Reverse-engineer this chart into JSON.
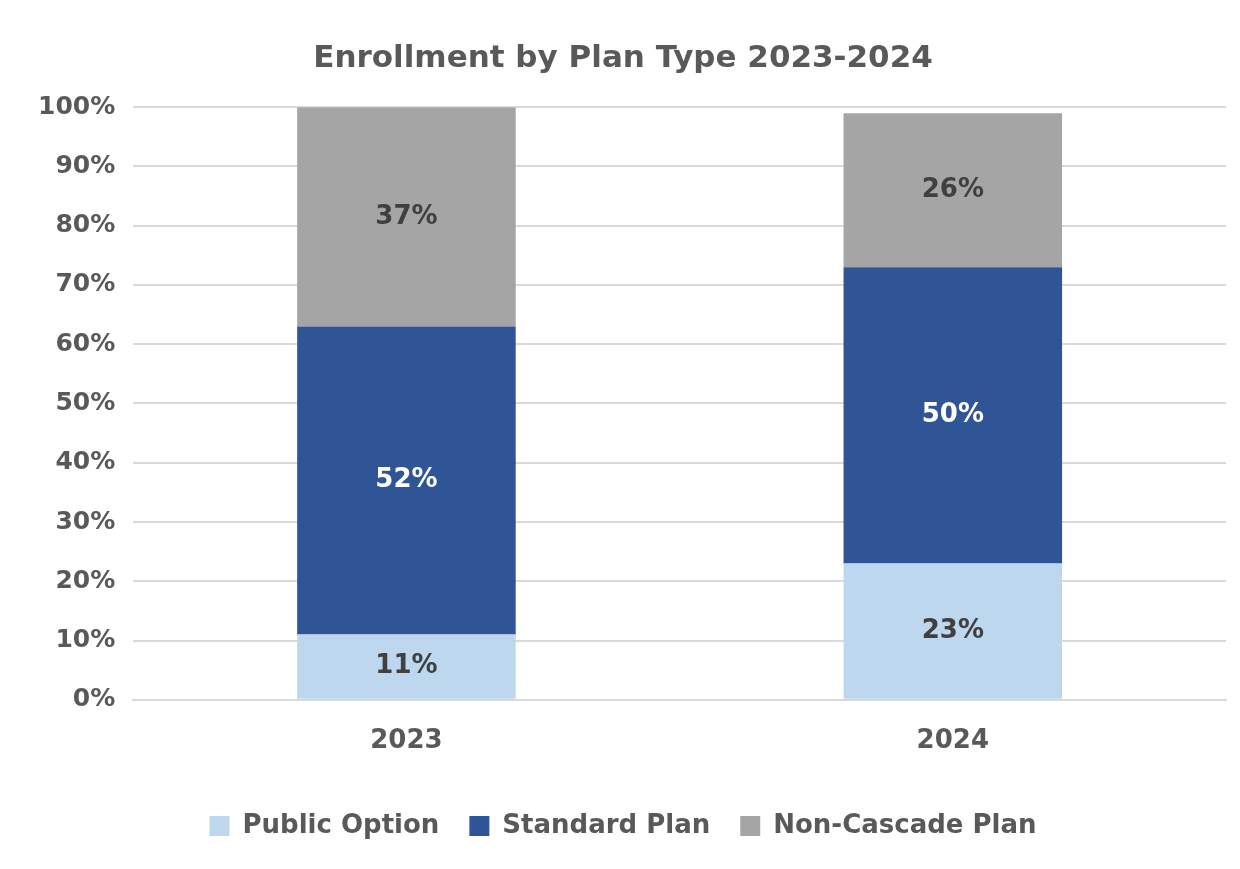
{
  "chart_data": {
    "type": "bar",
    "title": "Enrollment by Plan Type 2023-2024",
    "categories": [
      "2023",
      "2024"
    ],
    "stacked": true,
    "legend": "bottom",
    "grid": "y",
    "ylim": [
      0,
      100
    ],
    "yticks": [
      {
        "value": 0,
        "label": "0%"
      },
      {
        "value": 10,
        "label": "10%"
      },
      {
        "value": 20,
        "label": "20%"
      },
      {
        "value": 30,
        "label": "30%"
      },
      {
        "value": 40,
        "label": "40%"
      },
      {
        "value": 50,
        "label": "50%"
      },
      {
        "value": 60,
        "label": "60%"
      },
      {
        "value": 70,
        "label": "70%"
      },
      {
        "value": 80,
        "label": "80%"
      },
      {
        "value": 90,
        "label": "90%"
      },
      {
        "value": 100,
        "label": "100%"
      }
    ],
    "series": [
      {
        "name": "Public Option",
        "color": "#bdd7ee",
        "values": [
          11,
          23
        ],
        "value_labels": [
          "11%",
          "23%"
        ]
      },
      {
        "name": "Standard Plan",
        "color": "#2f5597",
        "values": [
          52,
          50
        ],
        "value_labels": [
          "52%",
          "50%"
        ]
      },
      {
        "name": "Non-Cascade Plan",
        "color": "#a5a5a5",
        "values": [
          37,
          26
        ],
        "value_labels": [
          "37%",
          "26%"
        ]
      }
    ]
  }
}
